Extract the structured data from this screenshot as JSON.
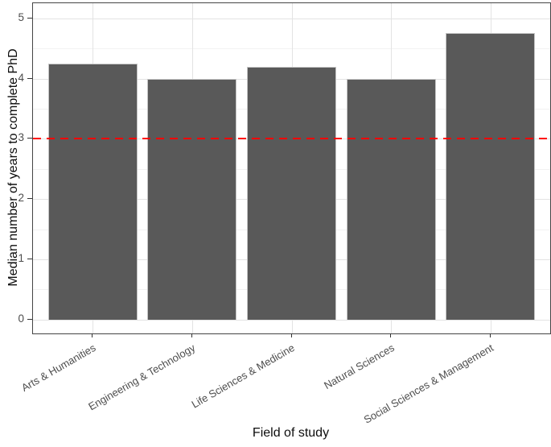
{
  "chart_data": {
    "type": "bar",
    "title": "",
    "categories": [
      "Arts & Humanities",
      "Engineering & Technology",
      "Life Sciences & Medicine",
      "Natural Sciences",
      "Social Sciences & Management"
    ],
    "values": [
      4.25,
      4.0,
      4.2,
      4.0,
      4.75
    ],
    "xlabel": "Field of study",
    "ylabel": "Median number of years to complete PhD",
    "ylim": [
      0,
      5
    ],
    "yticks": [
      0,
      1,
      2,
      3,
      4,
      5
    ],
    "grid": "on",
    "legend_position": "none",
    "bar_fill": "#595959",
    "bar_border": "#c4c4c4",
    "reference_line": {
      "y": 3,
      "style": "dashed",
      "color": "#ff0000"
    }
  }
}
